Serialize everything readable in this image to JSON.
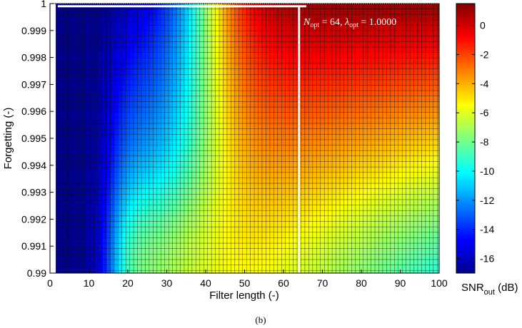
{
  "caption": "(b)",
  "chart_data": {
    "type": "heatmap",
    "xlabel": "Filter length (-)",
    "ylabel": "Forgetting (-)",
    "xlim": [
      0,
      100
    ],
    "ylim": [
      0.99,
      1.0
    ],
    "x_ticks": [
      0,
      10,
      20,
      30,
      40,
      50,
      60,
      70,
      80,
      90,
      100
    ],
    "y_ticks": [
      "0.99",
      "0.991",
      "0.992",
      "0.993",
      "0.994",
      "0.995",
      "0.996",
      "0.997",
      "0.998",
      "0.999",
      "1"
    ],
    "grid": {
      "filter_length_range": [
        2,
        100
      ],
      "forgetting_range": [
        0.99,
        0.9999
      ],
      "columns": 99,
      "rows": 50
    },
    "colorbar": {
      "label_main": "SNR",
      "label_sub": "out",
      "label_unit": " (dB)",
      "range": [
        -17,
        1.5
      ],
      "ticks": [
        "0",
        "-2",
        "-4",
        "-6",
        "-8",
        "-10",
        "-12",
        "-14",
        "-16"
      ],
      "tick_values": [
        0,
        -2,
        -4,
        -6,
        -8,
        -10,
        -12,
        -14,
        -16
      ]
    },
    "optimum": {
      "N_opt": 64,
      "lambda_opt": 1.0,
      "label_N": "N",
      "label_sub": "opt",
      "label_N_value": " = 64, ",
      "label_lambda": "λ",
      "label_lambda_value": " = 1.0000"
    }
  }
}
